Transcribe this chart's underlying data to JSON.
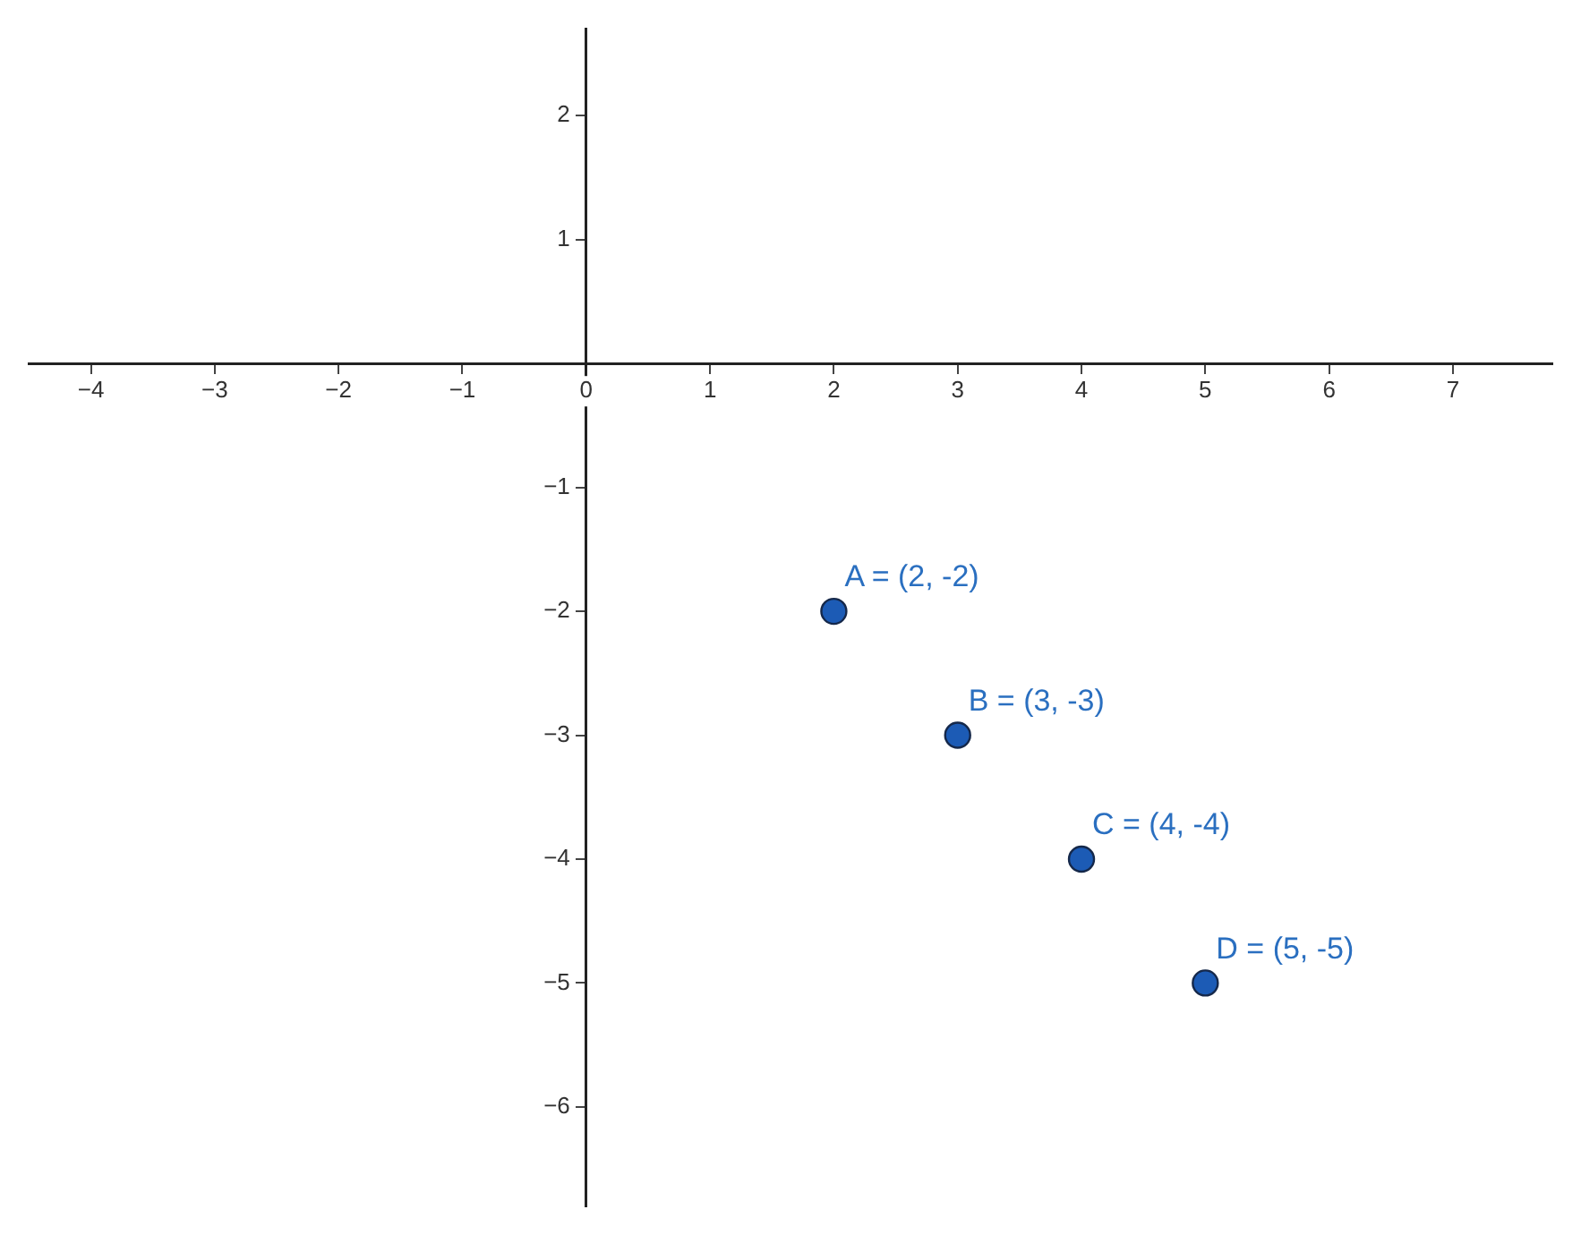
{
  "chart_data": {
    "type": "scatter",
    "x": [
      2,
      3,
      4,
      5
    ],
    "values": [
      -2,
      -3,
      -4,
      -5
    ],
    "color": "#1c5bb5",
    "marker": "circle",
    "grid": false,
    "legend": false,
    "xlim": [
      -4.5,
      7.8
    ],
    "ylim": [
      -6.8,
      2.7
    ],
    "xticks": [
      {
        "value": -4,
        "label": "−4"
      },
      {
        "value": -3,
        "label": "−3"
      },
      {
        "value": -2,
        "label": "−2"
      },
      {
        "value": -1,
        "label": "−1"
      },
      0,
      1,
      2,
      3,
      4,
      5,
      6,
      7
    ],
    "yticks": [
      {
        "value": -6,
        "label": "−6"
      },
      {
        "value": -5,
        "label": "−5"
      },
      {
        "value": -4,
        "label": "−4"
      },
      {
        "value": -3,
        "label": "−3"
      },
      {
        "value": -2,
        "label": "−2"
      },
      {
        "value": -1,
        "label": "−1"
      },
      {
        "value": 0,
        "label": null
      },
      1,
      2
    ],
    "annotations": [
      {
        "text": "A = (2, -2)",
        "x": 2,
        "y": -2
      },
      {
        "text": "B = (3, -3)",
        "x": 3,
        "y": -3
      },
      {
        "text": "C = (4, -4)",
        "x": 4,
        "y": -4
      },
      {
        "text": "D = (5, -5)",
        "x": 5,
        "y": -5
      }
    ]
  }
}
